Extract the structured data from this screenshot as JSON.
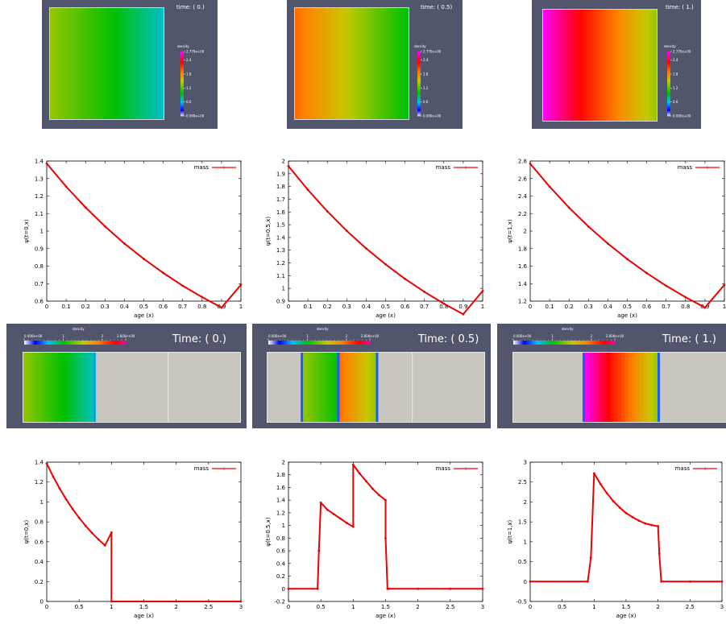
{
  "colorbar_top": {
    "title": "density",
    "labels": [
      "2.770e+00",
      "2.4",
      "1.8",
      "1.2",
      "0.6",
      "0.000e+00"
    ],
    "values": [
      2.77,
      2.4,
      1.8,
      1.2,
      0.6,
      0.0
    ]
  },
  "colorbar_strip": {
    "title": "density",
    "labels": [
      "0.000e+00",
      "1",
      "2",
      "2.600e+00"
    ],
    "values": [
      0,
      1,
      2,
      2.6
    ]
  },
  "panels_top": [
    {
      "title": "time: ( 0.)",
      "color_stops": [
        {
          "x": 0,
          "density": 1.39
        },
        {
          "x": 1,
          "density": 0.69
        }
      ]
    },
    {
      "title": "time: ( 0.5)",
      "color_stops": [
        {
          "x": 0,
          "density": 1.96
        },
        {
          "x": 1,
          "density": 0.98
        }
      ]
    },
    {
      "title": "time: ( 1.)",
      "color_stops": [
        {
          "x": 0,
          "density": 2.77
        },
        {
          "x": 1,
          "density": 1.39
        }
      ]
    }
  ],
  "panels_strip": [
    {
      "title": "Time: ( 0.)",
      "domain": [
        0,
        3
      ],
      "segments": [
        {
          "x0": 0,
          "x1": 1,
          "d0": 1.39,
          "d1": 0.69
        }
      ],
      "divisions": [
        1,
        2
      ]
    },
    {
      "title": "Time: ( 0.5)",
      "domain": [
        0,
        3
      ],
      "segments": [
        {
          "x0": 0.5,
          "x1": 1,
          "d0": 1.39,
          "d1": 0.98
        },
        {
          "x0": 1,
          "x1": 1.5,
          "d0": 1.96,
          "d1": 1.39
        }
      ],
      "divisions": [
        1,
        2
      ]
    },
    {
      "title": "Time: ( 1.)",
      "domain": [
        0,
        3
      ],
      "segments": [
        {
          "x0": 1,
          "x1": 2,
          "d0": 2.77,
          "d1": 1.39
        }
      ],
      "divisions": [
        1,
        2
      ]
    }
  ],
  "chart_data": [
    {
      "type": "line",
      "xlabel": "age (x)",
      "ylabel": "ψ(t=0,x)",
      "legend": "mass",
      "legend_position": "top-right",
      "xlim": [
        0,
        1
      ],
      "ylim": [
        0.6,
        1.4
      ],
      "xticks": [
        "0",
        "0.1",
        "0.2",
        "0.3",
        "0.4",
        "0.5",
        "0.6",
        "0.7",
        "0.8",
        "0.9",
        "1"
      ],
      "yticks": [
        "0.6",
        "0.7",
        "0.8",
        "0.9",
        "1",
        "1.1",
        "1.2",
        "1.3",
        "1.4"
      ],
      "series": [
        {
          "name": "mass",
          "color": "#ee0000",
          "x": [
            0,
            0.1,
            0.2,
            0.3,
            0.4,
            0.5,
            0.6,
            0.7,
            0.8,
            0.9,
            1
          ],
          "y": [
            1.386,
            1.254,
            1.135,
            1.027,
            0.929,
            0.841,
            0.761,
            0.688,
            0.623,
            0.563,
            0.693
          ]
        }
      ]
    },
    {
      "type": "line",
      "xlabel": "age (x)",
      "ylabel": "ψ(t=0.5,x)",
      "legend": "mass",
      "legend_position": "top-right",
      "xlim": [
        0,
        1
      ],
      "ylim": [
        0.9,
        2
      ],
      "xticks": [
        "0",
        "0.1",
        "0.2",
        "0.3",
        "0.4",
        "0.5",
        "0.6",
        "0.7",
        "0.8",
        "0.9",
        "1"
      ],
      "yticks": [
        "0.9",
        "1",
        "1.1",
        "1.2",
        "1.3",
        "1.4",
        "1.5",
        "1.6",
        "1.7",
        "1.8",
        "1.9",
        "2"
      ],
      "series": [
        {
          "name": "mass",
          "color": "#ee0000",
          "x": [
            0,
            0.1,
            0.2,
            0.3,
            0.4,
            0.5,
            0.6,
            0.7,
            0.8,
            0.9,
            1
          ],
          "y": [
            1.96,
            1.774,
            1.605,
            1.452,
            1.314,
            1.189,
            1.075,
            0.973,
            0.88,
            0.797,
            0.98
          ]
        }
      ]
    },
    {
      "type": "line",
      "xlabel": "age (x)",
      "ylabel": "ψ(t=1,x)",
      "legend": "mass",
      "legend_position": "top-right",
      "xlim": [
        0,
        1
      ],
      "ylim": [
        1.2,
        2.8
      ],
      "xticks": [
        "0",
        "0.1",
        "0.2",
        "0.3",
        "0.4",
        "0.5",
        "0.6",
        "0.7",
        "0.8",
        "0.9",
        "1"
      ],
      "yticks": [
        "1.2",
        "1.4",
        "1.6",
        "1.8",
        "2",
        "2.2",
        "2.4",
        "2.6",
        "2.8"
      ],
      "series": [
        {
          "name": "mass",
          "color": "#ee0000",
          "x": [
            0,
            0.1,
            0.2,
            0.3,
            0.4,
            0.5,
            0.6,
            0.7,
            0.8,
            0.9,
            1
          ],
          "y": [
            2.77,
            2.507,
            2.268,
            2.052,
            1.857,
            1.68,
            1.52,
            1.376,
            1.245,
            1.126,
            1.386
          ]
        }
      ]
    },
    {
      "type": "line",
      "xlabel": "age (x)",
      "ylabel": "ψ(t=0,x)",
      "legend": "mass",
      "legend_position": "top-right",
      "xlim": [
        0,
        3
      ],
      "ylim": [
        0,
        1.4
      ],
      "xticks": [
        "0",
        "0.5",
        "1",
        "1.5",
        "2",
        "2.5",
        "3"
      ],
      "yticks": [
        "0",
        "0.2",
        "0.4",
        "0.6",
        "0.8",
        "1",
        "1.2",
        "1.4"
      ],
      "series": [
        {
          "name": "mass",
          "color": "#ee0000",
          "x": [
            0,
            0.1,
            0.2,
            0.3,
            0.4,
            0.5,
            0.6,
            0.7,
            0.8,
            0.9,
            1,
            1,
            1.5,
            2,
            2.5,
            3
          ],
          "y": [
            1.386,
            1.254,
            1.135,
            1.027,
            0.929,
            0.841,
            0.761,
            0.688,
            0.623,
            0.563,
            0.693,
            0,
            0,
            0,
            0,
            0
          ]
        }
      ]
    },
    {
      "type": "line",
      "xlabel": "age (x)",
      "ylabel": "ψ(t=0.5,x)",
      "legend": "mass",
      "legend_position": "top-right",
      "xlim": [
        0,
        3
      ],
      "ylim": [
        -0.2,
        2
      ],
      "xticks": [
        "0",
        "0.5",
        "1",
        "1.5",
        "2",
        "2.5",
        "3"
      ],
      "yticks": [
        "-0.2",
        "0",
        "0.2",
        "0.4",
        "0.6",
        "0.8",
        "1",
        "1.2",
        "1.4",
        "1.6",
        "1.8",
        "2"
      ],
      "series": [
        {
          "name": "mass",
          "color": "#ee0000",
          "x": [
            0,
            0.45,
            0.47,
            0.5,
            0.6,
            0.7,
            0.8,
            0.9,
            1,
            1,
            1.1,
            1.2,
            1.3,
            1.4,
            1.5,
            1.5,
            1.53,
            1.55,
            2,
            2.5,
            3
          ],
          "y": [
            0,
            0,
            0.6,
            1.36,
            1.25,
            1.18,
            1.11,
            1.04,
            0.98,
            1.96,
            1.82,
            1.7,
            1.58,
            1.48,
            1.4,
            0.8,
            0,
            0,
            0,
            0,
            0
          ]
        }
      ]
    },
    {
      "type": "line",
      "xlabel": "age (x)",
      "ylabel": "ψ(t=1,x)",
      "legend": "mass",
      "legend_position": "top-right",
      "xlim": [
        0,
        3
      ],
      "ylim": [
        -0.5,
        3
      ],
      "xticks": [
        "0",
        "0.5",
        "1",
        "1.5",
        "2",
        "2.5",
        "3"
      ],
      "yticks": [
        "-0.5",
        "0",
        "0.5",
        "1",
        "1.5",
        "2",
        "2.5",
        "3"
      ],
      "series": [
        {
          "name": "mass",
          "color": "#ee0000",
          "x": [
            0,
            0.9,
            0.95,
            1,
            1.1,
            1.2,
            1.3,
            1.4,
            1.5,
            1.6,
            1.7,
            1.8,
            1.9,
            2,
            2.02,
            2.05,
            2.5,
            3
          ],
          "y": [
            0,
            0,
            0.6,
            2.72,
            2.45,
            2.22,
            2.02,
            1.86,
            1.72,
            1.62,
            1.53,
            1.46,
            1.42,
            1.39,
            0.7,
            0,
            0,
            0
          ]
        }
      ]
    }
  ]
}
